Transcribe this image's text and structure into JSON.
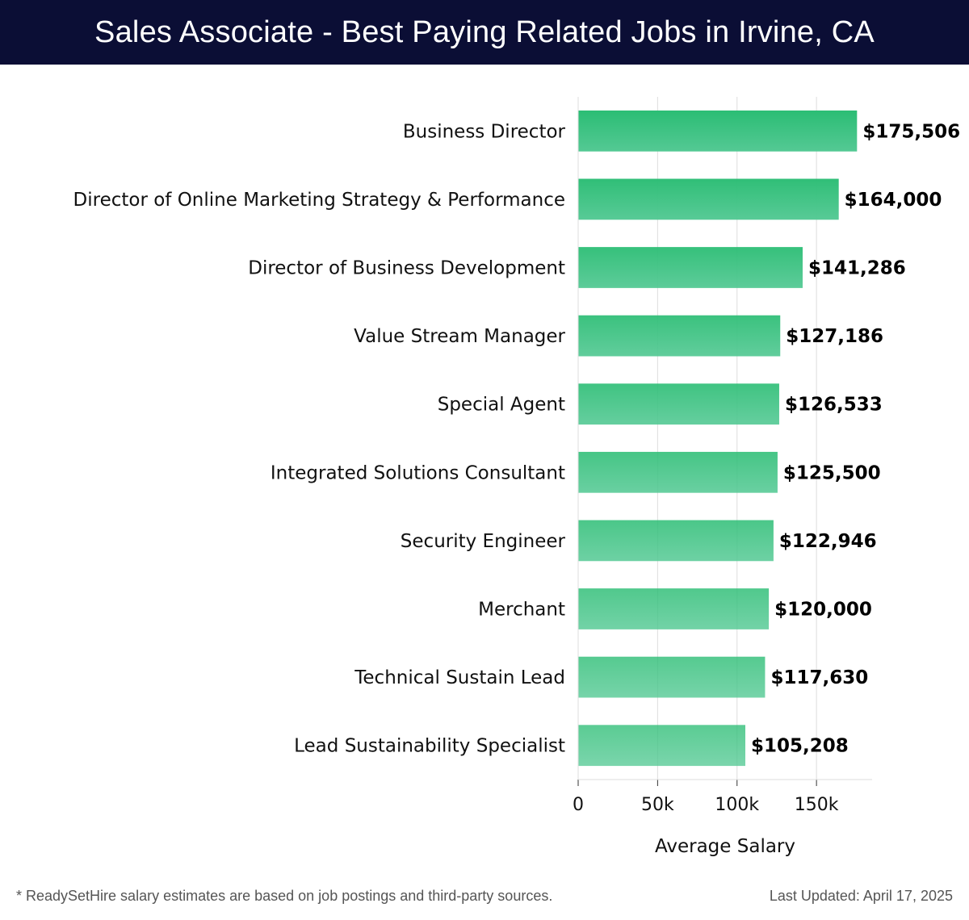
{
  "header": {
    "title": "Sales Associate - Best Paying Related Jobs in Irvine, CA"
  },
  "colors": {
    "header_bg": "#0b0e35",
    "bar_top": "#2bbd74",
    "bar_bottom": "#54c994",
    "grid": "#dddddd"
  },
  "chart_data": {
    "type": "bar",
    "orientation": "horizontal",
    "title": "Sales Associate - Best Paying Related Jobs in Irvine, CA",
    "xlabel": "Average Salary",
    "ylabel": "",
    "xlim": [
      0,
      185000
    ],
    "xticks": [
      0,
      50000,
      100000,
      150000
    ],
    "xtick_labels": [
      "0",
      "50k",
      "100k",
      "150k"
    ],
    "grid": true,
    "categories": [
      "Business Director",
      "Director of Online Marketing Strategy & Performance",
      "Director of Business Development",
      "Value Stream Manager",
      "Special Agent",
      "Integrated Solutions Consultant",
      "Security Engineer",
      "Merchant",
      "Technical Sustain Lead",
      "Lead Sustainability Specialist"
    ],
    "values": [
      175506,
      164000,
      141286,
      127186,
      126533,
      125500,
      122946,
      120000,
      117630,
      105208
    ],
    "value_labels": [
      "$175,506",
      "$164,000",
      "$141,286",
      "$127,186",
      "$126,533",
      "$125,500",
      "$122,946",
      "$120,000",
      "$117,630",
      "$105,208"
    ]
  },
  "footer": {
    "note": "* ReadySetHire salary estimates are based on job postings and third-party sources.",
    "updated": "Last Updated: April 17, 2025"
  }
}
